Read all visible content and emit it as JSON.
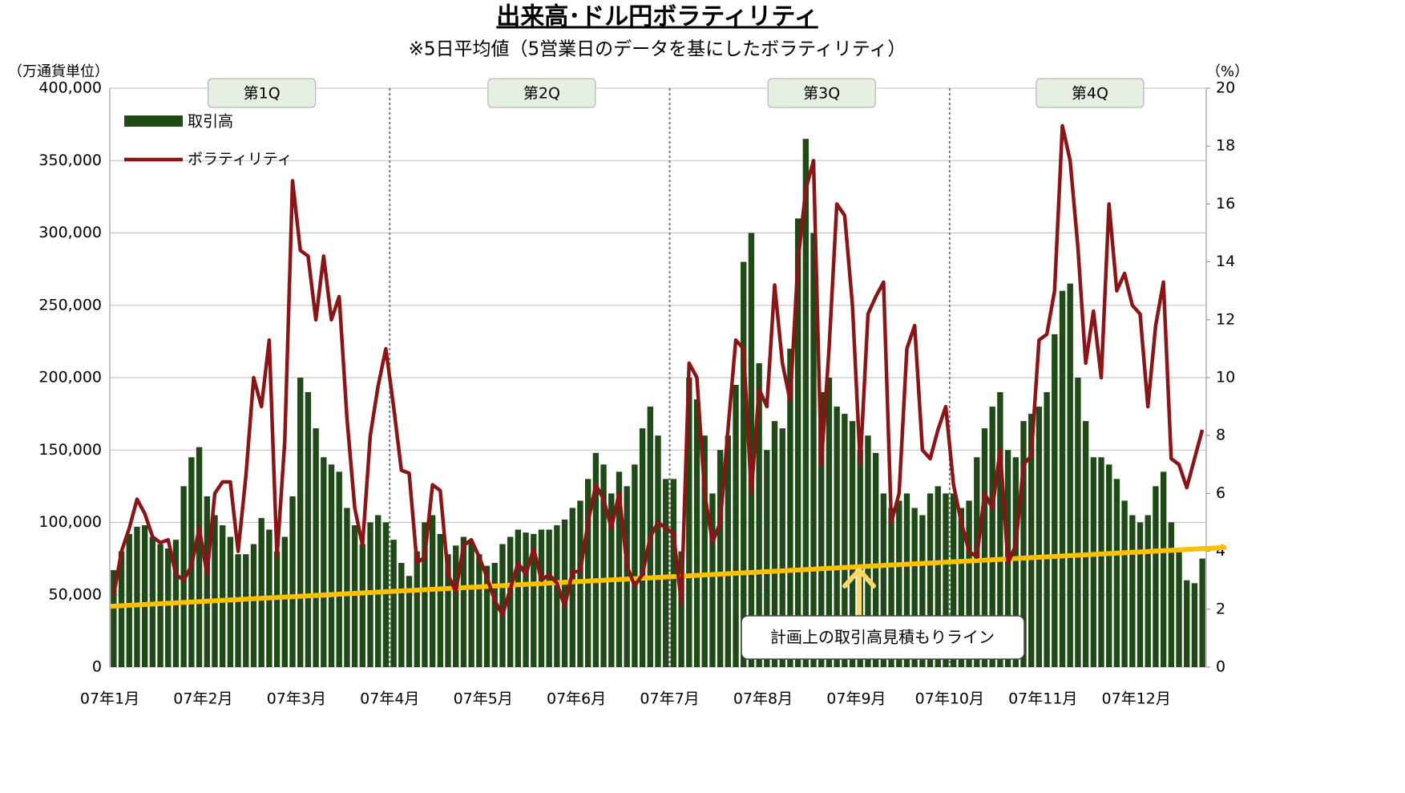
{
  "chart_data": {
    "type": "bar_line",
    "title": "出来高･ドル円ボラティリティ",
    "subtitle": "※5日平均値（5営業日のデータを基にしたボラティリティ）",
    "y_axis_label": "（万通貨単位）",
    "y2_axis_label": "（%）",
    "quarters": [
      "第1Q",
      "第2Q",
      "第3Q",
      "第4Q"
    ],
    "categories": [
      "07年1月",
      null,
      null,
      null,
      null,
      null,
      null,
      null,
      null,
      null,
      null,
      null,
      "07年2月",
      null,
      null,
      null,
      null,
      null,
      null,
      null,
      null,
      null,
      null,
      null,
      "07年3月",
      null,
      null,
      null,
      null,
      null,
      null,
      null,
      null,
      null,
      null,
      null,
      "07年4月",
      null,
      null,
      null,
      null,
      null,
      null,
      null,
      null,
      null,
      null,
      null,
      "07年5月",
      null,
      null,
      null,
      null,
      null,
      null,
      null,
      null,
      null,
      null,
      null,
      "07年6月",
      null,
      null,
      null,
      null,
      null,
      null,
      null,
      null,
      null,
      null,
      null,
      "07年7月",
      null,
      null,
      null,
      null,
      null,
      null,
      null,
      null,
      null,
      null,
      null,
      "07年8月",
      null,
      null,
      null,
      null,
      null,
      null,
      null,
      null,
      null,
      null,
      null,
      "07年9月",
      null,
      null,
      null,
      null,
      null,
      null,
      null,
      null,
      null,
      null,
      null,
      "07年10月",
      null,
      null,
      null,
      null,
      null,
      null,
      null,
      null,
      null,
      null,
      null,
      "07年11月",
      null,
      null,
      null,
      null,
      null,
      null,
      null,
      null,
      null,
      null,
      null,
      "07年12月",
      null,
      null,
      null,
      null,
      null,
      null,
      null,
      null
    ],
    "series": [
      {
        "name": "取引高",
        "color": "#1f4a17",
        "axis": "y",
        "values": [
          67000,
          80000,
          92000,
          97000,
          98000,
          90000,
          85000,
          82000,
          88000,
          125000,
          145000,
          152000,
          118000,
          105000,
          98000,
          90000,
          78000,
          78000,
          85000,
          103000,
          95000,
          80000,
          90000,
          118000,
          200000,
          190000,
          165000,
          145000,
          140000,
          135000,
          110000,
          98000,
          85000,
          100000,
          105000,
          100000,
          88000,
          72000,
          63000,
          80000,
          100000,
          105000,
          92000,
          78000,
          84000,
          90000,
          86000,
          78000,
          70000,
          72000,
          85000,
          90000,
          95000,
          93000,
          92000,
          95000,
          95000,
          98000,
          102000,
          110000,
          115000,
          130000,
          148000,
          140000,
          120000,
          135000,
          125000,
          140000,
          165000,
          180000,
          160000,
          130000,
          130000,
          80000,
          200000,
          185000,
          160000,
          120000,
          150000,
          160000,
          195000,
          280000,
          300000,
          210000,
          150000,
          170000,
          165000,
          220000,
          310000,
          365000,
          300000,
          190000,
          200000,
          180000,
          175000,
          170000,
          150000,
          160000,
          148000,
          120000,
          110000,
          115000,
          120000,
          110000,
          105000,
          120000,
          125000,
          120000,
          120000,
          110000,
          115000,
          145000,
          165000,
          180000,
          190000,
          150000,
          145000,
          170000,
          175000,
          180000,
          190000,
          230000,
          260000,
          265000,
          200000,
          170000,
          145000,
          145000,
          140000,
          130000,
          115000,
          105000,
          100000,
          105000,
          125000,
          135000,
          100000,
          80000,
          60000,
          58000,
          75000
        ]
      },
      {
        "name": "ボラティリティ",
        "color": "#8b1416",
        "axis": "y2",
        "values": [
          2.5,
          4.0,
          4.8,
          5.8,
          5.3,
          4.5,
          4.3,
          4.4,
          3.2,
          3.0,
          3.5,
          4.8,
          3.2,
          6.0,
          6.4,
          6.4,
          4.0,
          6.6,
          10.0,
          9.0,
          11.3,
          3.8,
          7.8,
          16.8,
          14.4,
          14.2,
          12.0,
          14.2,
          12.0,
          12.8,
          8.6,
          5.5,
          4.2,
          8.0,
          9.7,
          11.0,
          9.0,
          6.8,
          6.7,
          3.6,
          3.8,
          6.3,
          6.1,
          3.2,
          2.6,
          4.2,
          4.4,
          3.8,
          3.1,
          2.3,
          1.8,
          2.7,
          3.6,
          3.2,
          4.1,
          3.0,
          3.2,
          2.9,
          2.1,
          3.3,
          3.3,
          5.0,
          6.3,
          5.8,
          4.8,
          6.0,
          3.5,
          2.8,
          3.2,
          4.5,
          5.0,
          4.8,
          4.6,
          2.2,
          10.5,
          10.0,
          6.0,
          4.3,
          5.0,
          8.2,
          11.3,
          11.0,
          6.0,
          9.6,
          9.0,
          13.2,
          10.5,
          9.2,
          14.0,
          16.5,
          17.5,
          7.0,
          11.0,
          16.0,
          15.6,
          12.5,
          7.0,
          12.2,
          12.8,
          13.3,
          5.0,
          6.0,
          11.0,
          11.8,
          7.5,
          7.2,
          8.2,
          9.0,
          6.3,
          5.0,
          4.0,
          3.8,
          6.0,
          5.5,
          7.5,
          3.6,
          4.2,
          7.0,
          7.3,
          11.3,
          11.5,
          13.0,
          18.7,
          17.5,
          14.5,
          10.5,
          12.3,
          10.0,
          16.0,
          13.0,
          13.6,
          12.5,
          12.2,
          9.0,
          11.8,
          13.3,
          7.2,
          7.0,
          6.2,
          7.2,
          8.2
        ]
      }
    ],
    "plan_line": {
      "label": "計画上の取引高見積もりライン",
      "color": "#ffc000",
      "start": 42000,
      "end": 82000
    },
    "ylim": [
      0,
      400000
    ],
    "yticks": [
      0,
      {
        "value": 50000,
        "label": "50,000"
      },
      {
        "value": 100000,
        "label": "100,000"
      },
      {
        "value": 150000,
        "label": "150,000"
      },
      {
        "value": 200000,
        "label": "200,000"
      },
      {
        "value": 250000,
        "label": "250,000"
      },
      {
        "value": 300000,
        "label": "300,000"
      },
      {
        "value": 350000,
        "label": "350,000"
      },
      {
        "value": 400000,
        "label": "400,000"
      }
    ],
    "y2lim": [
      0,
      20
    ],
    "y2ticks": [
      0,
      2,
      4,
      6,
      8,
      10,
      12,
      14,
      16,
      18,
      20
    ],
    "grid": true
  }
}
